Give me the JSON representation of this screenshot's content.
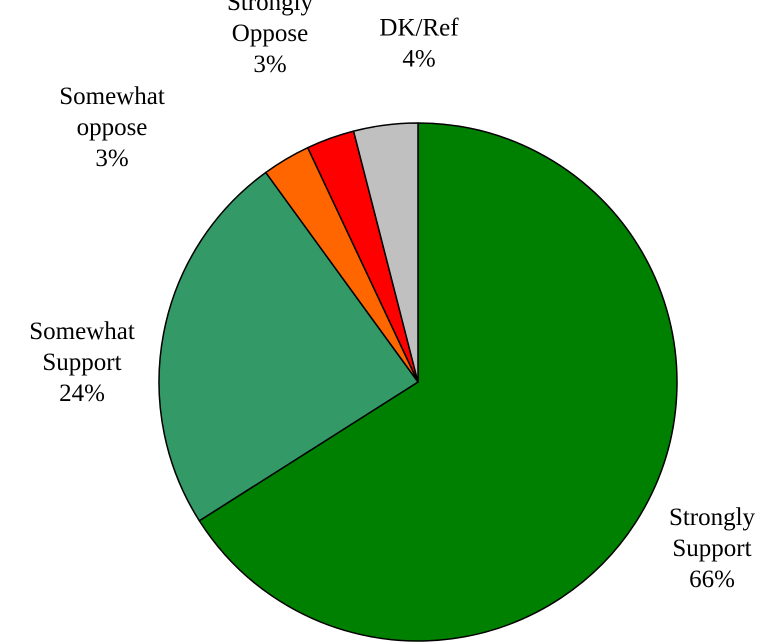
{
  "chart_data": {
    "type": "pie",
    "title": "",
    "start": "12 o'clock",
    "direction": "clockwise",
    "slices": [
      {
        "name": "Strongly Support",
        "value": 66,
        "value_label": "66%",
        "color": "#008000"
      },
      {
        "name": "Somewhat Support",
        "value": 24,
        "value_label": "24%",
        "color": "#339966"
      },
      {
        "name": "Somewhat oppose",
        "value": 3,
        "value_label": "3%",
        "color": "#ff6600"
      },
      {
        "name": "Strongly Oppose",
        "value": 3,
        "value_label": "3%",
        "color": "#ff0000"
      },
      {
        "name": "DK/Ref",
        "value": 4,
        "value_label": "4%",
        "color": "#c0c0c0"
      }
    ],
    "labels": [
      {
        "lines": [
          "Strongly",
          "Support",
          "66%"
        ]
      },
      {
        "lines": [
          "Somewhat",
          "Support",
          "24%"
        ]
      },
      {
        "lines": [
          "Somewhat",
          "oppose",
          "3%"
        ]
      },
      {
        "lines": [
          "Strongly",
          "Oppose",
          "3%"
        ]
      },
      {
        "lines": [
          "DK/Ref",
          "4%"
        ]
      }
    ],
    "legend": "none",
    "grid": false
  }
}
